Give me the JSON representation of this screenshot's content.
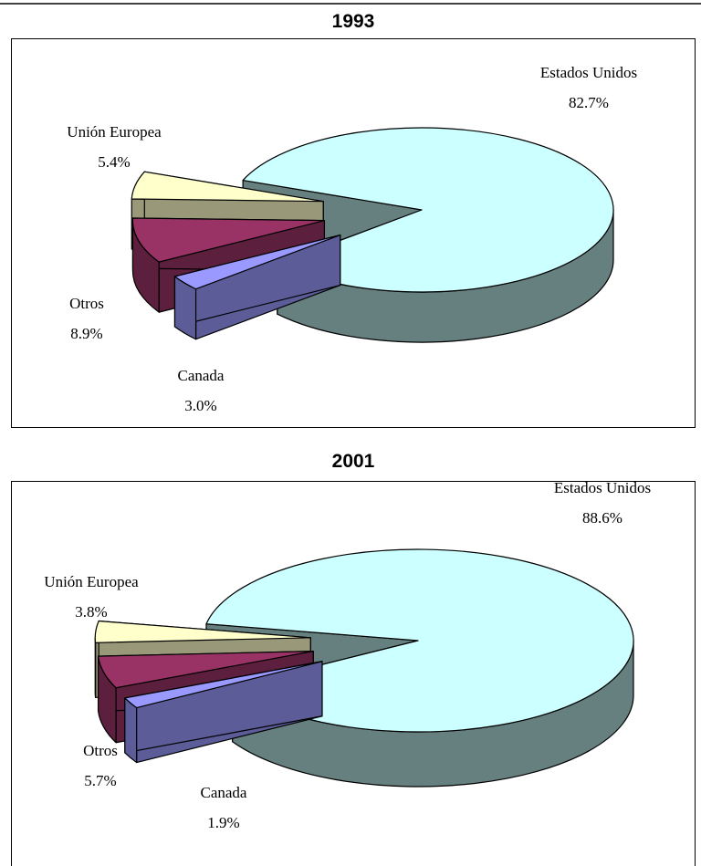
{
  "chart_data": [
    {
      "type": "pie3d",
      "title": "1993",
      "categories": [
        "Estados Unidos",
        "Canada",
        "Otros",
        "Unión Europea"
      ],
      "values": [
        82.7,
        3.0,
        8.9,
        5.4
      ],
      "value_labels": [
        "82.7%",
        "3.0%",
        "8.9%",
        "5.4%"
      ],
      "colors": [
        "#ccffff",
        "#9999ff",
        "#993366",
        "#ffffcc"
      ]
    },
    {
      "type": "pie3d",
      "title": "2001",
      "categories": [
        "Estados Unidos",
        "Canada",
        "Otros",
        "Unión Europea"
      ],
      "values": [
        88.6,
        1.9,
        5.7,
        3.8
      ],
      "value_labels": [
        "88.6%",
        "1.9%",
        "5.7%",
        "3.8%"
      ],
      "colors": [
        "#ccffff",
        "#9999ff",
        "#993366",
        "#ffffcc"
      ]
    }
  ]
}
